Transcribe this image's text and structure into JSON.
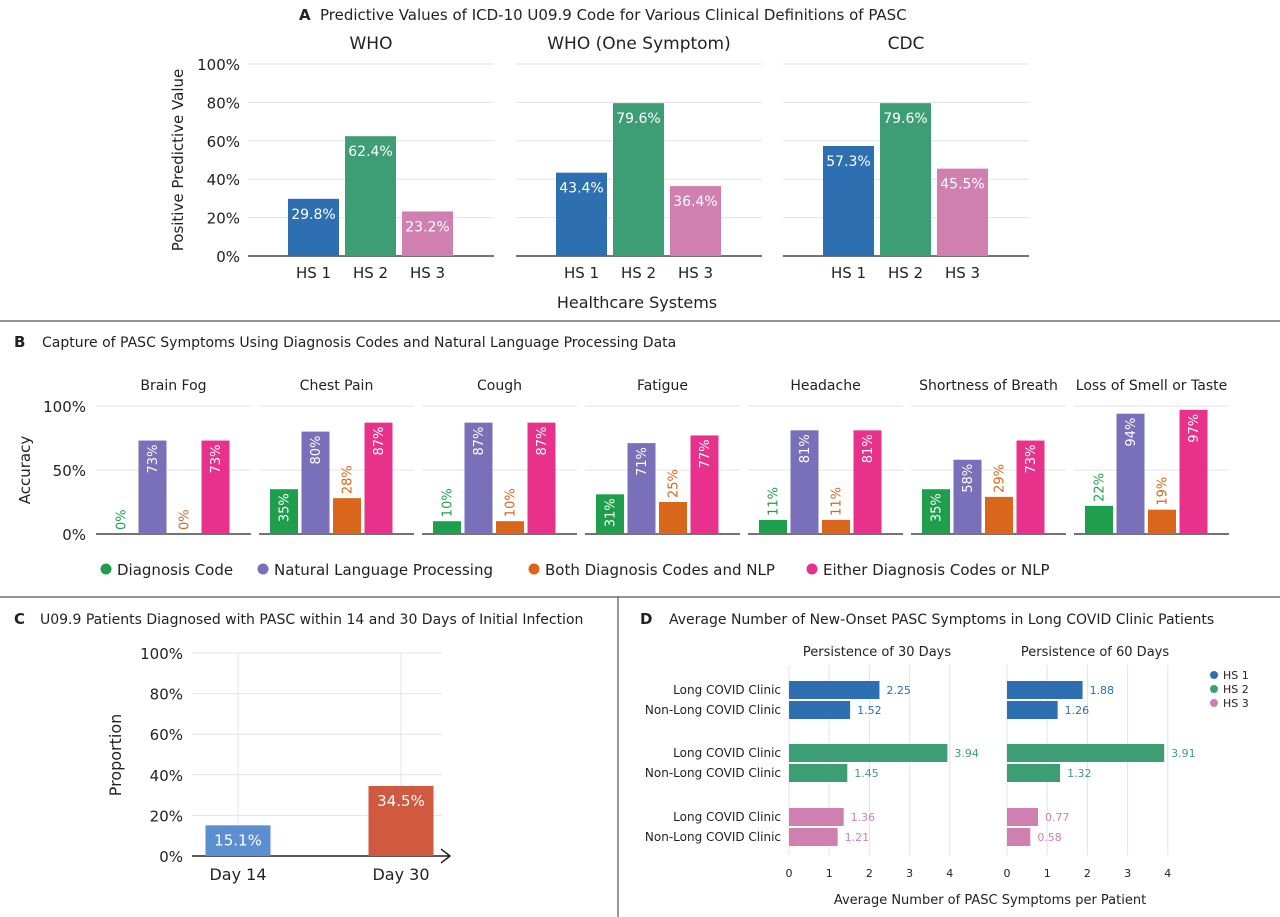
{
  "colors": {
    "hs1": "#2e6fb2",
    "hs2": "#3d9e76",
    "hs3": "#cf7fb0",
    "diag": "#1f9e4d",
    "nlp": "#7a6fb9",
    "both": "#d8661b",
    "either": "#e8318a",
    "day14": "#5b8fd1",
    "day30": "#d05a40",
    "grid": "#e3e3e3",
    "axis": "#222222"
  },
  "panels": [
    {
      "letter": "A",
      "title": "Predictive Values of ICD-10 U09.9 Code for Various Clinical Definitions of PASC",
      "chart_data": {
        "type": "bar",
        "ylabel": "Positive Predictive Value",
        "xlabel": "Healthcare Systems",
        "ylim": [
          0,
          100
        ],
        "yticks": [
          "0%",
          "20%",
          "40%",
          "60%",
          "80%",
          "100%"
        ],
        "categories": [
          "HS 1",
          "HS 2",
          "HS 3"
        ],
        "grid": true,
        "facets": [
          {
            "name": "WHO",
            "values": [
              29.8,
              62.4,
              23.2
            ],
            "labels": [
              "29.8%",
              "62.4%",
              "23.2%"
            ]
          },
          {
            "name": "WHO (One Symptom)",
            "values": [
              43.4,
              79.6,
              36.4
            ],
            "labels": [
              "43.4%",
              "79.6%",
              "36.4%"
            ]
          },
          {
            "name": "CDC",
            "values": [
              57.3,
              79.6,
              45.5
            ],
            "labels": [
              "57.3%",
              "79.6%",
              "45.5%"
            ]
          }
        ]
      }
    },
    {
      "letter": "B",
      "title": "Capture of PASC Symptoms Using Diagnosis Codes and Natural Language Processing Data",
      "chart_data": {
        "type": "bar",
        "ylabel": "Accuracy",
        "ylim": [
          0,
          100
        ],
        "yticks": [
          "0%",
          "50%",
          "100%"
        ],
        "grid": true,
        "legend_position": "bottom",
        "series": [
          {
            "name": "Diagnosis Code"
          },
          {
            "name": "Natural Language Processing"
          },
          {
            "name": "Both Diagnosis Codes and NLP"
          },
          {
            "name": "Either Diagnosis Codes or NLP"
          }
        ],
        "facets": [
          {
            "name": "Brain Fog",
            "values": [
              0,
              73,
              0,
              73
            ],
            "labels": [
              "0%",
              "73%",
              "0%",
              "73%"
            ]
          },
          {
            "name": "Chest Pain",
            "values": [
              35,
              80,
              28,
              87
            ],
            "labels": [
              "35%",
              "80%",
              "28%",
              "87%"
            ]
          },
          {
            "name": "Cough",
            "values": [
              10,
              87,
              10,
              87
            ],
            "labels": [
              "10%",
              "87%",
              "10%",
              "87%"
            ]
          },
          {
            "name": "Fatigue",
            "values": [
              31,
              71,
              25,
              77
            ],
            "labels": [
              "31%",
              "71%",
              "25%",
              "77%"
            ]
          },
          {
            "name": "Headache",
            "values": [
              11,
              81,
              11,
              81
            ],
            "labels": [
              "11%",
              "81%",
              "11%",
              "81%"
            ]
          },
          {
            "name": "Shortness of Breath",
            "values": [
              35,
              58,
              29,
              73
            ],
            "labels": [
              "35%",
              "58%",
              "29%",
              "73%"
            ]
          },
          {
            "name": "Loss of Smell or Taste",
            "values": [
              22,
              94,
              19,
              97
            ],
            "labels": [
              "22%",
              "94%",
              "19%",
              "97%"
            ]
          }
        ]
      }
    },
    {
      "letter": "C",
      "title": "U09.9 Patients Diagnosed with PASC within 14 and 30 Days of Initial Infection",
      "chart_data": {
        "type": "bar",
        "ylabel": "Proportion",
        "ylim": [
          0,
          100
        ],
        "yticks": [
          "0%",
          "20%",
          "40%",
          "60%",
          "80%",
          "100%"
        ],
        "grid": true,
        "categories": [
          "Day 14",
          "Day 30"
        ],
        "values": [
          15.1,
          34.5
        ],
        "labels": [
          "15.1%",
          "34.5%"
        ]
      }
    },
    {
      "letter": "D",
      "title": "Average Number of New-Onset PASC Symptoms in Long COVID Clinic Patients",
      "chart_data": {
        "type": "bar",
        "orientation": "horizontal",
        "xlabel": "Average Number of PASC Symptoms per Patient",
        "xlim": [
          0,
          5
        ],
        "xticks": [
          "0",
          "1",
          "2",
          "3",
          "4"
        ],
        "grid": true,
        "legend_position": "right",
        "legend": [
          "HS 1",
          "HS 2",
          "HS 3"
        ],
        "row_labels": [
          "Long COVID Clinic",
          "Non-Long COVID Clinic"
        ],
        "facets": [
          {
            "name": "Persistence of 30 Days",
            "groups": [
              {
                "values": [
                  2.25,
                  1.52
                ],
                "labels": [
                  "2.25",
                  "1.52"
                ]
              },
              {
                "values": [
                  3.94,
                  1.45
                ],
                "labels": [
                  "3.94",
                  "1.45"
                ]
              },
              {
                "values": [
                  1.36,
                  1.21
                ],
                "labels": [
                  "1.36",
                  "1.21"
                ]
              }
            ]
          },
          {
            "name": "Persistence of 60 Days",
            "groups": [
              {
                "values": [
                  1.88,
                  1.26
                ],
                "labels": [
                  "1.88",
                  "1.26"
                ]
              },
              {
                "values": [
                  3.91,
                  1.32
                ],
                "labels": [
                  "3.91",
                  "1.32"
                ]
              },
              {
                "values": [
                  0.77,
                  0.58
                ],
                "labels": [
                  "0.77",
                  "0.58"
                ]
              }
            ]
          }
        ]
      }
    }
  ]
}
